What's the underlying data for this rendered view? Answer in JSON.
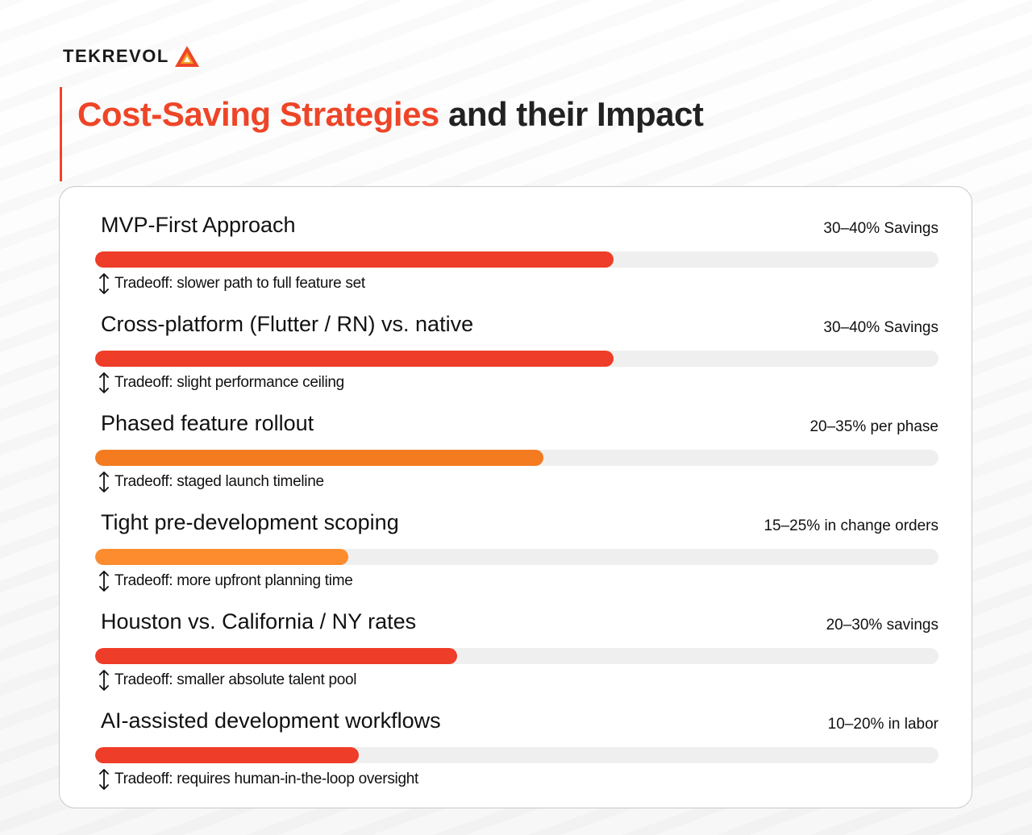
{
  "brand": {
    "logo_text": "TEKREVOL",
    "logo_icon": "triangle-logo-icon",
    "accent_color": "#ee4528",
    "orange_color": "#f47b20"
  },
  "title": {
    "highlight": "Cost-Saving Strategies",
    "rest": " and their Impact"
  },
  "chart_data": {
    "type": "bar",
    "orientation": "horizontal",
    "scale": "relative",
    "rows": [
      {
        "label": "MVP-First Approach",
        "value_text": "30–40% Savings",
        "fill": 0.615,
        "color": "#ee3d28",
        "tradeoff": "Tradeoff: slower path to full feature set"
      },
      {
        "label": "Cross-platform (Flutter / RN) vs. native",
        "value_text": "30–40% Savings",
        "fill": 0.615,
        "color": "#ee3d28",
        "tradeoff": "Tradeoff: slight performance ceiling"
      },
      {
        "label": "Phased feature rollout",
        "value_text": "20–35% per phase",
        "fill": 0.532,
        "color": "#f47b20",
        "tradeoff": "Tradeoff: staged launch timeline"
      },
      {
        "label": "Tight pre-development scoping",
        "value_text": "15–25% in change orders",
        "fill": 0.3,
        "color": "#fd8c2f",
        "tradeoff": "Tradeoff: more upfront planning time"
      },
      {
        "label": "Houston vs. California / NY rates",
        "value_text": "20–30% savings",
        "fill": 0.429,
        "color": "#ee3d28",
        "tradeoff": "Tradeoff: smaller absolute talent pool"
      },
      {
        "label": "AI-assisted development workflows",
        "value_text": "10–20% in labor",
        "fill": 0.313,
        "color": "#ee3d28",
        "tradeoff": "Tradeoff: requires human-in-the-loop oversight"
      }
    ]
  }
}
